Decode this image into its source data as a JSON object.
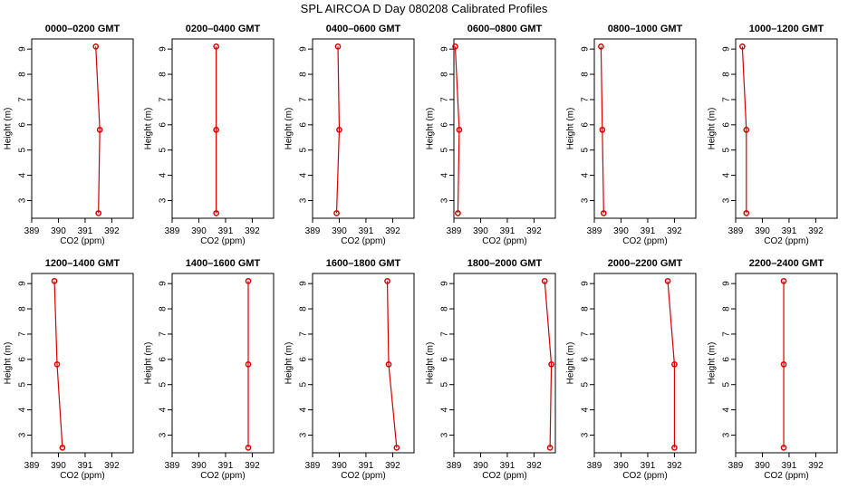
{
  "title": "SPL AIRCOA D  Day 080208  Calibrated Profiles",
  "colors": {
    "line": "#d40000",
    "axis": "#000000"
  },
  "chart_data": [
    {
      "type": "line",
      "title": "0000–0200 GMT",
      "xlabel": "CO2 (ppm)",
      "ylabel": "Height (m)",
      "xlim": [
        389,
        392.8
      ],
      "ylim": [
        2.3,
        9.4
      ],
      "xticks": [
        "389",
        "390",
        "391",
        "392"
      ],
      "yticks": [
        "3",
        "4",
        "5",
        "6",
        "7",
        "8",
        "9"
      ],
      "series": [
        {
          "x": [
            391.5,
            391.55,
            391.4
          ],
          "y": [
            2.5,
            5.8,
            9.1
          ]
        }
      ]
    },
    {
      "type": "line",
      "title": "0200–0400 GMT",
      "xlabel": "CO2 (ppm)",
      "ylabel": "Height (m)",
      "xlim": [
        389,
        392.8
      ],
      "ylim": [
        2.3,
        9.4
      ],
      "xticks": [
        "389",
        "390",
        "391",
        "392"
      ],
      "yticks": [
        "3",
        "4",
        "5",
        "6",
        "7",
        "8",
        "9"
      ],
      "series": [
        {
          "x": [
            390.65,
            390.65,
            390.65
          ],
          "y": [
            2.5,
            5.8,
            9.1
          ]
        }
      ]
    },
    {
      "type": "line",
      "title": "0400–0600 GMT",
      "xlabel": "CO2 (ppm)",
      "ylabel": "Height (m)",
      "xlim": [
        389,
        392.8
      ],
      "ylim": [
        2.3,
        9.4
      ],
      "xticks": [
        "389",
        "390",
        "391",
        "392"
      ],
      "yticks": [
        "3",
        "4",
        "5",
        "6",
        "7",
        "8",
        "9"
      ],
      "series": [
        {
          "x": [
            389.9,
            390.0,
            389.95
          ],
          "y": [
            2.5,
            5.8,
            9.1
          ]
        }
      ]
    },
    {
      "type": "line",
      "title": "0600–0800 GMT",
      "xlabel": "CO2 (ppm)",
      "ylabel": "Height (m)",
      "xlim": [
        389,
        392.8
      ],
      "ylim": [
        2.3,
        9.4
      ],
      "xticks": [
        "389",
        "390",
        "391",
        "392"
      ],
      "yticks": [
        "3",
        "4",
        "5",
        "6",
        "7",
        "8",
        "9"
      ],
      "series": [
        {
          "x": [
            389.15,
            389.2,
            389.05
          ],
          "y": [
            2.5,
            5.8,
            9.1
          ]
        }
      ]
    },
    {
      "type": "line",
      "title": "0800–1000 GMT",
      "xlabel": "CO2 (ppm)",
      "ylabel": "Height (m)",
      "xlim": [
        389,
        392.8
      ],
      "ylim": [
        2.3,
        9.4
      ],
      "xticks": [
        "389",
        "390",
        "391",
        "392"
      ],
      "yticks": [
        "3",
        "4",
        "5",
        "6",
        "7",
        "8",
        "9"
      ],
      "series": [
        {
          "x": [
            389.35,
            389.3,
            389.25
          ],
          "y": [
            2.5,
            5.8,
            9.1
          ]
        }
      ]
    },
    {
      "type": "line",
      "title": "1000–1200 GMT",
      "xlabel": "CO2 (ppm)",
      "ylabel": "Height (m)",
      "xlim": [
        389,
        392.8
      ],
      "ylim": [
        2.3,
        9.4
      ],
      "xticks": [
        "389",
        "390",
        "391",
        "392"
      ],
      "yticks": [
        "3",
        "4",
        "5",
        "6",
        "7",
        "8",
        "9"
      ],
      "series": [
        {
          "x": [
            389.4,
            389.4,
            389.25
          ],
          "y": [
            2.5,
            5.8,
            9.1
          ]
        }
      ]
    },
    {
      "type": "line",
      "title": "1200–1400 GMT",
      "xlabel": "CO2 (ppm)",
      "ylabel": "Height (m)",
      "xlim": [
        389,
        392.8
      ],
      "ylim": [
        2.3,
        9.4
      ],
      "xticks": [
        "389",
        "390",
        "391",
        "392"
      ],
      "yticks": [
        "3",
        "4",
        "5",
        "6",
        "7",
        "8",
        "9"
      ],
      "series": [
        {
          "x": [
            390.15,
            389.95,
            389.85
          ],
          "y": [
            2.5,
            5.8,
            9.1
          ]
        }
      ]
    },
    {
      "type": "line",
      "title": "1400–1600 GMT",
      "xlabel": "CO2 (ppm)",
      "ylabel": "Height (m)",
      "xlim": [
        389,
        392.8
      ],
      "ylim": [
        2.3,
        9.4
      ],
      "xticks": [
        "389",
        "390",
        "391",
        "392"
      ],
      "yticks": [
        "3",
        "4",
        "5",
        "6",
        "7",
        "8",
        "9"
      ],
      "series": [
        {
          "x": [
            391.85,
            391.85,
            391.85
          ],
          "y": [
            2.5,
            5.8,
            9.1
          ]
        }
      ]
    },
    {
      "type": "line",
      "title": "1600–1800 GMT",
      "xlabel": "CO2 (ppm)",
      "ylabel": "Height (m)",
      "xlim": [
        389,
        392.8
      ],
      "ylim": [
        2.3,
        9.4
      ],
      "xticks": [
        "389",
        "390",
        "391",
        "392"
      ],
      "yticks": [
        "3",
        "4",
        "5",
        "6",
        "7",
        "8",
        "9"
      ],
      "series": [
        {
          "x": [
            392.15,
            391.85,
            391.8
          ],
          "y": [
            2.5,
            5.8,
            9.1
          ]
        }
      ]
    },
    {
      "type": "line",
      "title": "1800–2000 GMT",
      "xlabel": "CO2 (ppm)",
      "ylabel": "Height (m)",
      "xlim": [
        389,
        392.8
      ],
      "ylim": [
        2.3,
        9.4
      ],
      "xticks": [
        "389",
        "390",
        "391",
        "392"
      ],
      "yticks": [
        "3",
        "4",
        "5",
        "6",
        "7",
        "8",
        "9"
      ],
      "series": [
        {
          "x": [
            392.6,
            392.65,
            392.4
          ],
          "y": [
            2.5,
            5.8,
            9.1
          ]
        }
      ]
    },
    {
      "type": "line",
      "title": "2000–2200 GMT",
      "xlabel": "CO2 (ppm)",
      "ylabel": "Height (m)",
      "xlim": [
        389,
        392.8
      ],
      "ylim": [
        2.3,
        9.4
      ],
      "xticks": [
        "389",
        "390",
        "391",
        "392"
      ],
      "yticks": [
        "3",
        "4",
        "5",
        "6",
        "7",
        "8",
        "9"
      ],
      "series": [
        {
          "x": [
            392.0,
            392.0,
            391.75
          ],
          "y": [
            2.5,
            5.8,
            9.1
          ]
        }
      ]
    },
    {
      "type": "line",
      "title": "2200–2400 GMT",
      "xlabel": "CO2 (ppm)",
      "ylabel": "Height (m)",
      "xlim": [
        389,
        392.8
      ],
      "ylim": [
        2.3,
        9.4
      ],
      "xticks": [
        "389",
        "390",
        "391",
        "392"
      ],
      "yticks": [
        "3",
        "4",
        "5",
        "6",
        "7",
        "8",
        "9"
      ],
      "series": [
        {
          "x": [
            390.8,
            390.8,
            390.8
          ],
          "y": [
            2.5,
            5.8,
            9.1
          ]
        }
      ]
    }
  ]
}
